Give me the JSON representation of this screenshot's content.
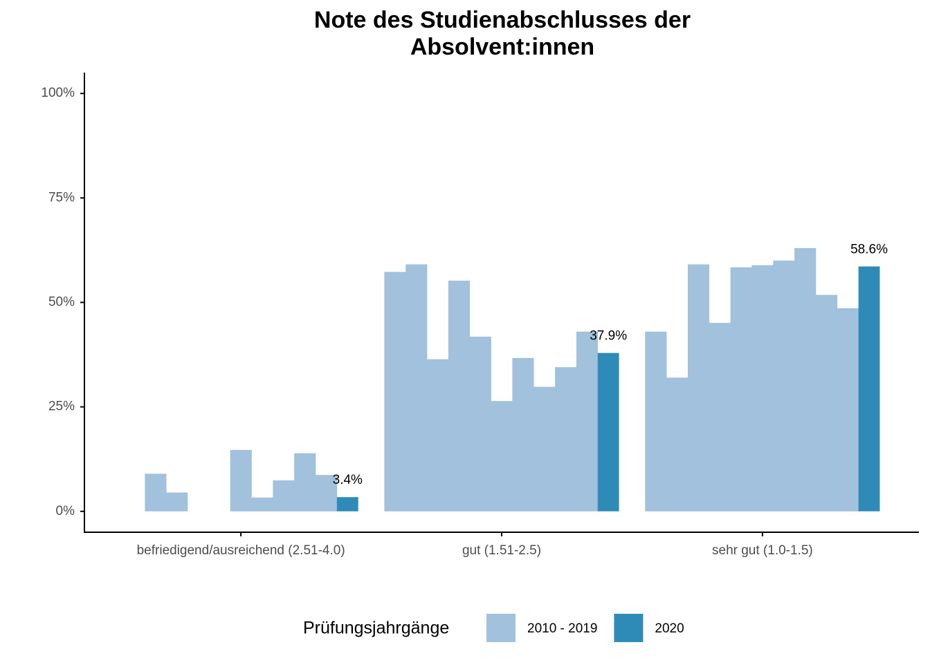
{
  "chart_data": {
    "type": "bar",
    "title": [
      "Note des Studienabschlusses der",
      "Absolvent:innen"
    ],
    "categories": [
      "befriedigend/ausreichend (2.51-4.0)",
      "gut (1.51-2.5)",
      "sehr gut (1.0-1.5)"
    ],
    "series": [
      {
        "name": "2010 - 2019",
        "color": "#a1c1dc",
        "values": [
          [
            0,
            9.0,
            4.5,
            0,
            0,
            14.7,
            3.3,
            7.4,
            13.9,
            8.7
          ],
          [
            57.3,
            59.1,
            36.4,
            55.2,
            41.8,
            26.4,
            36.7,
            29.8,
            34.5,
            43.0
          ],
          [
            43.0,
            32.0,
            59.1,
            45.1,
            58.4,
            58.9,
            60.0,
            63.0,
            51.8,
            48.6
          ]
        ]
      },
      {
        "name": "2020",
        "color": "#2e8bb8",
        "values": [
          3.4,
          37.9,
          58.6
        ],
        "value_labels": [
          "3.4%",
          "37.9%",
          "58.6%"
        ]
      }
    ],
    "ylim": [
      -5,
      105
    ],
    "yticks": [
      {
        "value": 0,
        "label": "0%"
      },
      {
        "value": 25,
        "label": "25%"
      },
      {
        "value": 50,
        "label": "50%"
      },
      {
        "value": 75,
        "label": "75%"
      },
      {
        "value": 100,
        "label": "100%"
      }
    ],
    "legend_title": "Prüfungsjahrgänge",
    "legend_position": "bottom",
    "grid": false
  }
}
